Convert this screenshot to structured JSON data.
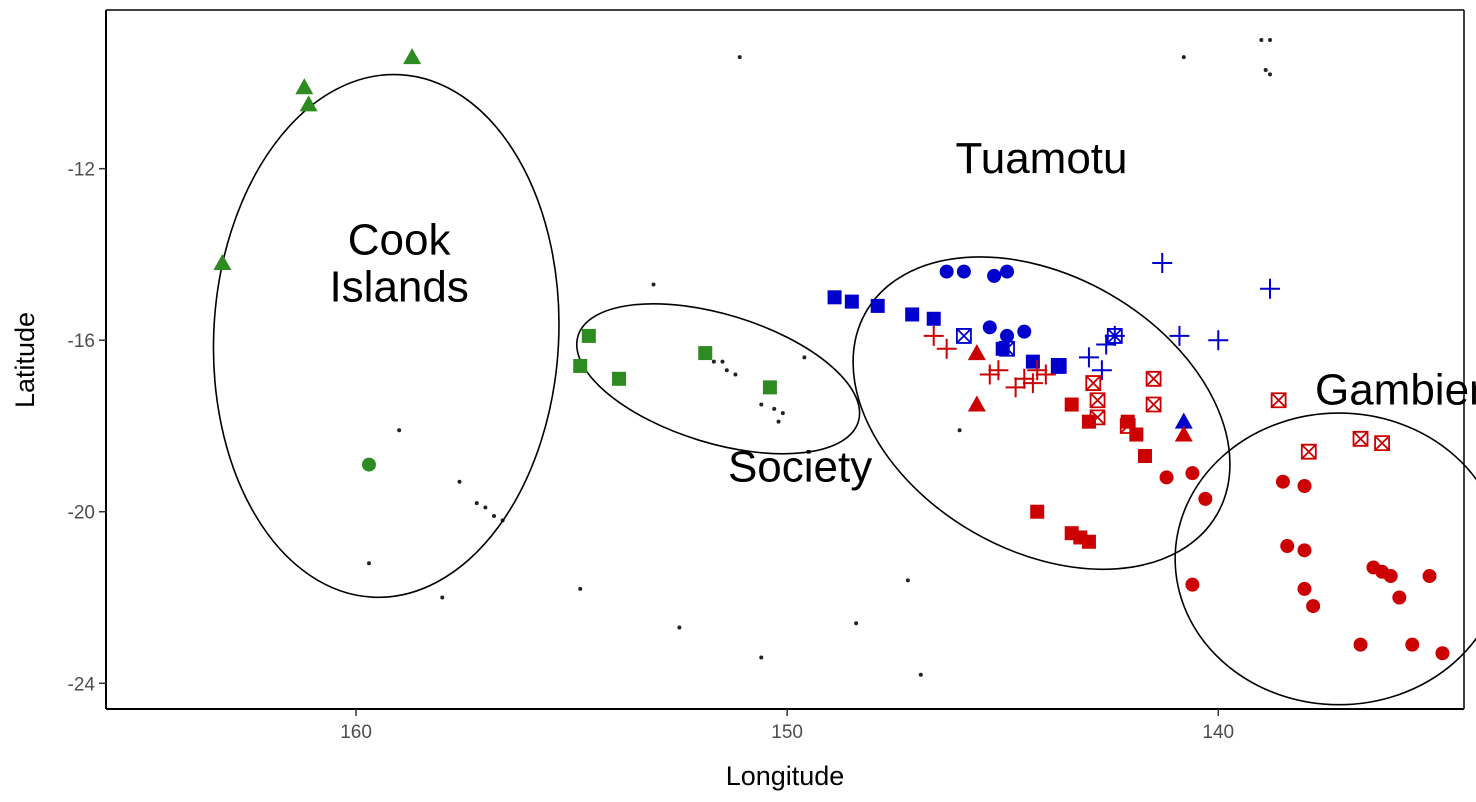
{
  "chart_data": {
    "type": "scatter",
    "xlabel": "Longitude",
    "ylabel": "Latitude",
    "x_reversed": true,
    "xlim": [
      165.8,
      134.3
    ],
    "ylim": [
      -24.6,
      -8.3
    ],
    "x_ticks": [
      {
        "value": 160,
        "label": "160"
      },
      {
        "value": 150,
        "label": "150"
      },
      {
        "value": 140,
        "label": "140"
      }
    ],
    "y_ticks": [
      {
        "value": -12,
        "label": "-12"
      },
      {
        "value": -16,
        "label": "-16"
      },
      {
        "value": -20,
        "label": "-20"
      },
      {
        "value": -24,
        "label": "-24"
      }
    ],
    "grid": false,
    "legend": "none",
    "colors": {
      "green": "#2e8b22",
      "blue": "#0000cc",
      "red": "#cc0000",
      "land": "#222222"
    },
    "region_labels": [
      {
        "text": "Cook",
        "lon": 159.0,
        "lat": -14.0
      },
      {
        "text": "Islands",
        "lon": 159.0,
        "lat": -15.1
      },
      {
        "text": "Society",
        "lon": 149.7,
        "lat": -19.3
      },
      {
        "text": "Tuamotu",
        "lon": 144.1,
        "lat": -12.1
      },
      {
        "text": "Gambier",
        "lon": 135.8,
        "lat": -17.5
      }
    ],
    "regions": [
      {
        "name": "Cook Islands",
        "lon": 159.3,
        "lat": -15.9,
        "rx_deg": 4.0,
        "ry_deg": 6.1,
        "rotate": 3
      },
      {
        "name": "Society",
        "lon": 151.6,
        "lat": -16.9,
        "rx_deg": 3.4,
        "ry_deg": 1.5,
        "rotate": 17
      },
      {
        "name": "Tuamotu",
        "lon": 144.1,
        "lat": -17.7,
        "rx_deg": 4.7,
        "ry_deg": 3.2,
        "rotate": 30
      },
      {
        "name": "Gambier",
        "lon": 137.2,
        "lat": -21.1,
        "rx_deg": 3.8,
        "ry_deg": 3.4,
        "rotate": 0
      }
    ],
    "series": [
      {
        "shape": "triangle",
        "color": "green",
        "points": [
          [
            163.1,
            -14.2
          ],
          [
            158.7,
            -9.4
          ],
          [
            161.2,
            -10.1
          ],
          [
            161.1,
            -10.5
          ]
        ]
      },
      {
        "shape": "circle",
        "color": "green",
        "points": [
          [
            159.7,
            -18.9
          ]
        ]
      },
      {
        "shape": "square",
        "color": "green",
        "points": [
          [
            154.8,
            -16.6
          ],
          [
            154.6,
            -15.9
          ],
          [
            153.9,
            -16.9
          ],
          [
            151.9,
            -16.3
          ],
          [
            150.4,
            -17.1
          ]
        ]
      },
      {
        "shape": "square",
        "color": "blue",
        "points": [
          [
            148.9,
            -15.0
          ],
          [
            148.5,
            -15.1
          ],
          [
            147.9,
            -15.2
          ],
          [
            147.1,
            -15.4
          ],
          [
            146.6,
            -15.5
          ],
          [
            145.0,
            -16.2
          ],
          [
            144.3,
            -16.5
          ],
          [
            143.7,
            -16.6
          ]
        ]
      },
      {
        "shape": "circle",
        "color": "blue",
        "points": [
          [
            146.3,
            -14.4
          ],
          [
            145.9,
            -14.4
          ],
          [
            145.2,
            -14.5
          ],
          [
            144.9,
            -14.4
          ],
          [
            145.3,
            -15.7
          ],
          [
            144.9,
            -15.9
          ],
          [
            144.5,
            -15.8
          ]
        ]
      },
      {
        "shape": "triangle",
        "color": "blue",
        "points": [
          [
            140.8,
            -17.9
          ]
        ]
      },
      {
        "shape": "plus",
        "color": "blue",
        "points": [
          [
            141.3,
            -14.2
          ],
          [
            138.8,
            -14.8
          ],
          [
            140.9,
            -15.9
          ],
          [
            140.0,
            -16.0
          ],
          [
            142.4,
            -15.9
          ],
          [
            142.6,
            -16.1
          ],
          [
            143.0,
            -16.4
          ],
          [
            142.7,
            -16.7
          ]
        ]
      },
      {
        "shape": "square-x",
        "color": "blue",
        "points": [
          [
            145.9,
            -15.9
          ],
          [
            144.9,
            -16.2
          ],
          [
            143.7,
            -16.6
          ],
          [
            142.4,
            -15.9
          ]
        ]
      },
      {
        "shape": "square",
        "color": "red",
        "points": [
          [
            143.4,
            -17.5
          ],
          [
            143.0,
            -17.9
          ],
          [
            142.1,
            -17.9
          ],
          [
            141.9,
            -18.2
          ],
          [
            141.7,
            -18.7
          ],
          [
            144.2,
            -20.0
          ],
          [
            143.4,
            -20.5
          ],
          [
            143.2,
            -20.6
          ],
          [
            143.0,
            -20.7
          ]
        ]
      },
      {
        "shape": "triangle",
        "color": "red",
        "points": [
          [
            145.6,
            -17.5
          ],
          [
            145.6,
            -16.3
          ],
          [
            140.8,
            -18.2
          ]
        ]
      },
      {
        "shape": "circle",
        "color": "red",
        "points": [
          [
            141.2,
            -19.2
          ],
          [
            140.6,
            -19.1
          ],
          [
            140.3,
            -19.7
          ],
          [
            138.5,
            -19.3
          ],
          [
            138.0,
            -19.4
          ],
          [
            138.4,
            -20.8
          ],
          [
            138.0,
            -20.9
          ],
          [
            138.0,
            -21.8
          ],
          [
            137.8,
            -22.2
          ],
          [
            140.6,
            -21.7
          ],
          [
            136.4,
            -21.3
          ],
          [
            136.2,
            -21.4
          ],
          [
            136.0,
            -21.5
          ],
          [
            135.8,
            -22.0
          ],
          [
            135.1,
            -21.5
          ],
          [
            136.7,
            -23.1
          ],
          [
            135.5,
            -23.1
          ],
          [
            134.8,
            -23.3
          ]
        ]
      },
      {
        "shape": "plus",
        "color": "red",
        "points": [
          [
            146.6,
            -15.9
          ],
          [
            146.3,
            -16.2
          ],
          [
            145.1,
            -16.7
          ],
          [
            144.5,
            -16.9
          ],
          [
            144.2,
            -16.7
          ],
          [
            144.0,
            -16.8
          ],
          [
            144.3,
            -17.0
          ],
          [
            144.7,
            -17.1
          ],
          [
            145.3,
            -16.8
          ]
        ]
      },
      {
        "shape": "square-x",
        "color": "red",
        "points": [
          [
            142.9,
            -17.0
          ],
          [
            142.8,
            -17.4
          ],
          [
            142.8,
            -17.8
          ],
          [
            141.5,
            -16.9
          ],
          [
            141.5,
            -17.5
          ],
          [
            142.1,
            -18.0
          ],
          [
            137.9,
            -18.6
          ],
          [
            136.7,
            -18.3
          ],
          [
            136.2,
            -18.4
          ],
          [
            138.6,
            -17.4
          ]
        ]
      }
    ],
    "land": [
      [
        159.0,
        -18.1
      ],
      [
        157.6,
        -19.3
      ],
      [
        157.2,
        -19.8
      ],
      [
        157.0,
        -19.9
      ],
      [
        156.8,
        -20.1
      ],
      [
        156.6,
        -20.2
      ],
      [
        159.7,
        -21.2
      ],
      [
        158.0,
        -22.0
      ],
      [
        154.8,
        -21.8
      ],
      [
        152.5,
        -22.7
      ],
      [
        150.6,
        -23.4
      ],
      [
        148.4,
        -22.6
      ],
      [
        146.9,
        -23.8
      ],
      [
        147.2,
        -21.6
      ],
      [
        150.2,
        -17.9
      ],
      [
        153.1,
        -14.7
      ],
      [
        151.1,
        -9.4
      ],
      [
        149.6,
        -16.4
      ],
      [
        151.7,
        -16.5
      ],
      [
        151.5,
        -16.5
      ],
      [
        151.4,
        -16.7
      ],
      [
        151.2,
        -16.8
      ],
      [
        150.6,
        -17.5
      ],
      [
        150.3,
        -17.6
      ],
      [
        150.1,
        -17.7
      ],
      [
        146.0,
        -18.1
      ],
      [
        140.8,
        -9.4
      ],
      [
        138.9,
        -9.7
      ],
      [
        138.8,
        -9.8
      ],
      [
        139.0,
        -9.0
      ],
      [
        138.8,
        -9.0
      ]
    ]
  }
}
